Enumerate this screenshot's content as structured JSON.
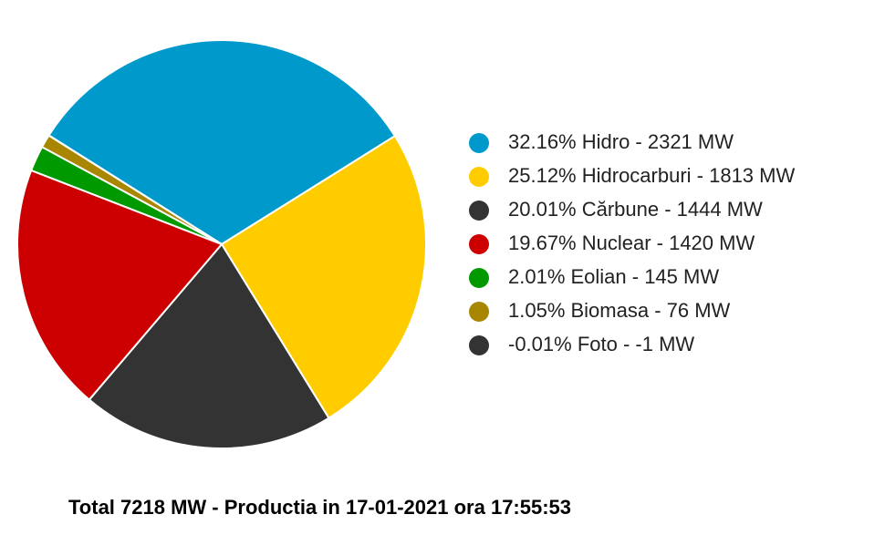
{
  "chart_data": {
    "type": "pie",
    "categories": [
      "Hidro",
      "Hidrocarburi",
      "Cărbune",
      "Nuclear",
      "Eolian",
      "Biomasa",
      "Foto"
    ],
    "values": [
      2321,
      1813,
      1444,
      1420,
      145,
      76,
      -1
    ],
    "value_labels": [
      "32.16% Hidro - 2321 MW",
      "25.12% Hidrocarburi - 1813 MW",
      "20.01% Cărbune - 1444 MW",
      "19.67% Nuclear - 1420 MW",
      "2.01% Eolian - 145 MW",
      "1.05% Biomasa - 76 MW",
      "-0.01% Foto - -1 MW"
    ],
    "colors": [
      "#0099cc",
      "#ffcc00",
      "#333333",
      "#cc0000",
      "#009900",
      "#a88600",
      "#333333"
    ],
    "legend": "right",
    "footer": "Total 7218 MW - Productia in 17-01-2021 ora 17:55:53"
  }
}
